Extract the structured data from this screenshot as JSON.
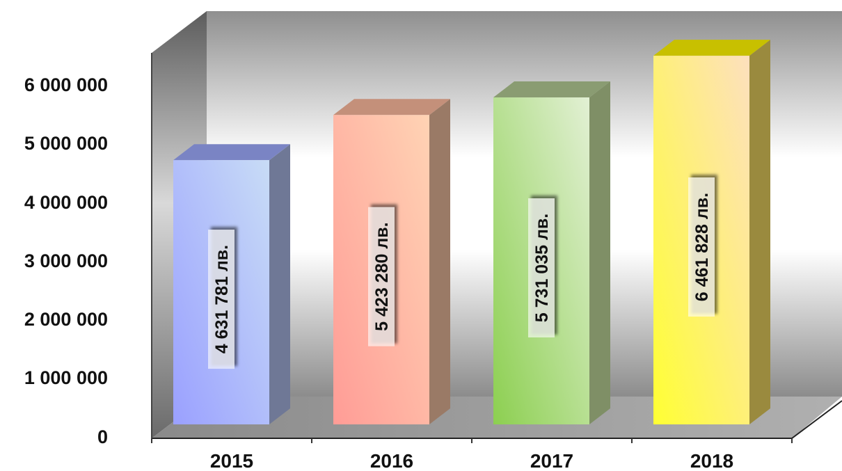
{
  "chart_data": {
    "type": "bar",
    "categories": [
      "2015",
      "2016",
      "2017",
      "2018"
    ],
    "values": [
      4631781,
      5423280,
      5731035,
      6461828
    ],
    "data_labels": [
      "4 631 781 лв.",
      "5 423 280 лв.",
      "5 731 035 лв.",
      "6 461 828 лв."
    ],
    "yticks": [
      "0",
      "1 000 000",
      "2 000 000",
      "3 000 000",
      "4 000 000",
      "5 000 000",
      "6 000 000"
    ],
    "ylim": [
      0,
      6000000
    ],
    "title": "",
    "xlabel": "",
    "ylabel": "",
    "grid": false,
    "legend": "none",
    "three_d": true,
    "colors": {
      "bar_fronts": [
        [
          "#9aa0ff",
          "#c8dcf6"
        ],
        [
          "#ff9c96",
          "#ffd3b4"
        ],
        [
          "#8ccf50",
          "#e2f0d4"
        ],
        [
          "#ffff33",
          "#fde0be"
        ]
      ],
      "bar_tops": [
        "#7a84c4",
        "#c4907a",
        "#8a9c72",
        "#c8c000"
      ],
      "bar_sides": [
        "#6f7896",
        "#9a7a66",
        "#7f8f66",
        "#9a8a3e"
      ]
    }
  }
}
